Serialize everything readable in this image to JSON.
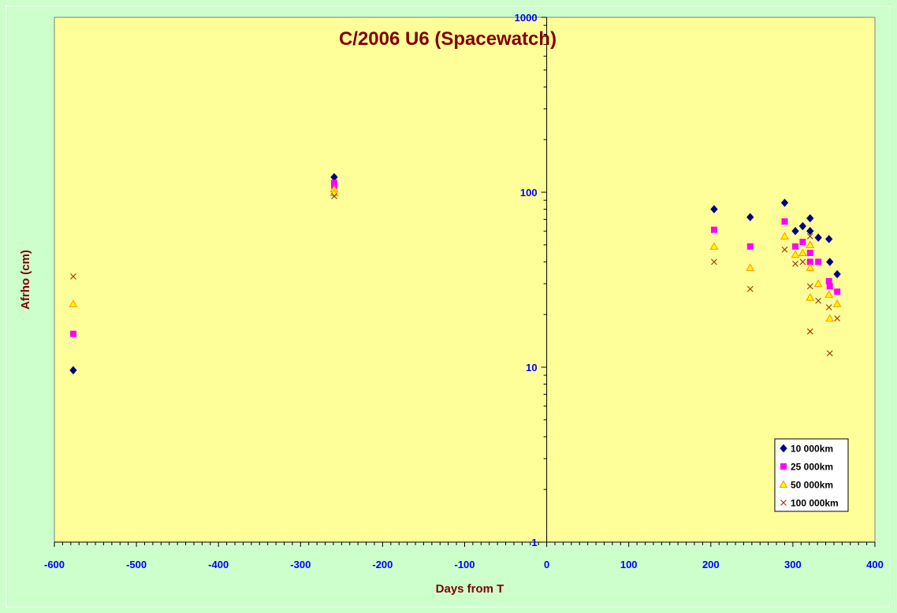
{
  "chart_data": {
    "type": "scatter",
    "title": "C/2006 U6 (Spacewatch)",
    "xlabel": "Days from T",
    "ylabel": "Afrho (cm)",
    "xlim": [
      -600,
      400
    ],
    "ylim": [
      1,
      1000
    ],
    "y_scale": "log",
    "x_ticks": [
      -600,
      -500,
      -400,
      -300,
      -200,
      -100,
      0,
      100,
      200,
      300,
      400
    ],
    "y_ticks": [
      1,
      10,
      100,
      1000
    ],
    "grid": false,
    "legend_position": "bottom-right",
    "colors": {
      "plot_background": "#ffff99",
      "page_background": "#ccffcc",
      "title": "#800000",
      "tick_labels": "#0000ff"
    },
    "series": [
      {
        "name": "10 000km",
        "marker": "diamond",
        "color": "#000080",
        "points": [
          [
            -577,
            9.6
          ],
          [
            -259,
            122
          ],
          [
            204,
            80
          ],
          [
            248,
            72
          ],
          [
            290,
            87
          ],
          [
            303,
            60
          ],
          [
            312,
            64
          ],
          [
            321,
            71
          ],
          [
            321,
            60
          ],
          [
            331,
            55
          ],
          [
            344,
            54
          ],
          [
            345,
            40
          ],
          [
            354,
            34
          ]
        ]
      },
      {
        "name": "25 000km",
        "marker": "square",
        "color": "#ff00ff",
        "points": [
          [
            -577,
            15.5
          ],
          [
            -259,
            113
          ],
          [
            -259,
            109
          ],
          [
            204,
            61
          ],
          [
            248,
            49
          ],
          [
            290,
            68
          ],
          [
            303,
            49
          ],
          [
            312,
            52
          ],
          [
            321,
            45
          ],
          [
            321,
            40
          ],
          [
            331,
            40
          ],
          [
            344,
            31
          ],
          [
            345,
            29
          ],
          [
            354,
            27
          ]
        ]
      },
      {
        "name": "50 000km",
        "marker": "triangle",
        "color": "#ff9900",
        "points": [
          [
            -577,
            23
          ],
          [
            -259,
            104
          ],
          [
            -259,
            99
          ],
          [
            204,
            49
          ],
          [
            248,
            37
          ],
          [
            290,
            56
          ],
          [
            303,
            44
          ],
          [
            312,
            45
          ],
          [
            321,
            50
          ],
          [
            321,
            37
          ],
          [
            321,
            25
          ],
          [
            331,
            30
          ],
          [
            344,
            26
          ],
          [
            345,
            19
          ],
          [
            354,
            23
          ]
        ]
      },
      {
        "name": "100 000km",
        "marker": "x",
        "color": "#993300",
        "points": [
          [
            -577,
            33
          ],
          [
            -259,
            95
          ],
          [
            204,
            40
          ],
          [
            248,
            28
          ],
          [
            290,
            47
          ],
          [
            303,
            39
          ],
          [
            312,
            40
          ],
          [
            321,
            56
          ],
          [
            321,
            29
          ],
          [
            321,
            16
          ],
          [
            331,
            24
          ],
          [
            344,
            22
          ],
          [
            345,
            12
          ],
          [
            354,
            19
          ]
        ]
      }
    ]
  }
}
